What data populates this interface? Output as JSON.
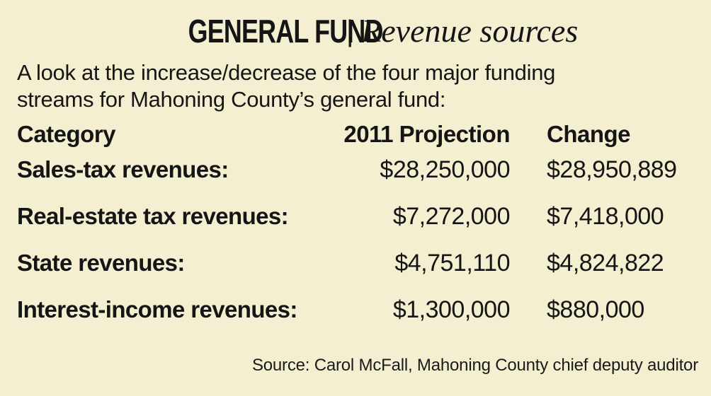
{
  "headline": {
    "main": "GENERAL FUND",
    "separator": "|",
    "sub": "Revenue sources"
  },
  "intro": {
    "line1": "A look at the increase/decrease of the four major funding",
    "line2": "streams for Mahoning County’s general fund:"
  },
  "table": {
    "headers": {
      "category": "Category",
      "projection": "2011 Projection",
      "change": "Change"
    },
    "rows": [
      {
        "category": "Sales-tax revenues:",
        "projection": "$28,250,000",
        "change": "$28,950,889"
      },
      {
        "category": "Real-estate tax revenues:",
        "projection": "$7,272,000",
        "change": "$7,418,000"
      },
      {
        "category": "State revenues:",
        "projection": "$4,751,110",
        "change": "$4,824,822"
      },
      {
        "category": "Interest-income revenues:",
        "projection": "$1,300,000",
        "change": "$880,000"
      }
    ]
  },
  "source": "Source: Carol McFall, Mahoning County chief deputy auditor",
  "colors": {
    "background": "#f4efd0",
    "text": "#151515"
  }
}
